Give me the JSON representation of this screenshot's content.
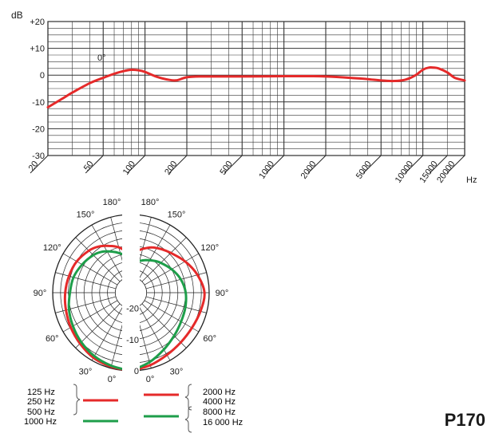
{
  "chart_data": [
    {
      "type": "line",
      "title": "",
      "ylabel": "dB",
      "xlabel": "Hz",
      "x_scale": "log",
      "xlim": [
        20,
        20000
      ],
      "ylim": [
        -30,
        20
      ],
      "y_ticks": [
        {
          "value": 20,
          "label": "+20"
        },
        {
          "value": 10,
          "label": "+10"
        },
        {
          "value": 0,
          "label": "0"
        },
        {
          "value": -10,
          "label": "-10"
        },
        {
          "value": -20,
          "label": "-20"
        },
        {
          "value": -30,
          "label": "-30"
        }
      ],
      "x_ticks": [
        {
          "value": 20,
          "label": "20"
        },
        {
          "value": 50,
          "label": "50"
        },
        {
          "value": 100,
          "label": "100"
        },
        {
          "value": 200,
          "label": "200"
        },
        {
          "value": 500,
          "label": "500"
        },
        {
          "value": 1000,
          "label": "1000"
        },
        {
          "value": 2000,
          "label": "2000"
        },
        {
          "value": 5000,
          "label": "5000"
        },
        {
          "value": 10000,
          "label": "10000"
        },
        {
          "value": 15000,
          "label": "15000"
        },
        {
          "value": 20000,
          "label": "20000"
        }
      ],
      "grid": true,
      "annotation": "0°",
      "color": "#e52a2a",
      "series": [
        {
          "x": [
            20,
            25,
            30,
            40,
            50,
            60,
            70,
            80,
            90,
            100,
            120,
            150,
            170,
            200,
            250,
            300,
            500,
            1000,
            1500,
            2000,
            3000,
            4000,
            5000,
            6000,
            7000,
            8000,
            9000,
            10000,
            11000,
            12000,
            13000,
            15000,
            17000,
            20000
          ],
          "y": [
            -12,
            -9,
            -6.5,
            -3,
            -1,
            0.5,
            1.5,
            2,
            1.8,
            1.2,
            -0.5,
            -1.8,
            -1.9,
            -0.8,
            -0.5,
            -0.5,
            -0.5,
            -0.4,
            -0.4,
            -0.5,
            -1,
            -1.5,
            -2,
            -2.2,
            -2,
            -1.2,
            0.2,
            2,
            2.8,
            2.8,
            2.5,
            1,
            -1,
            -2
          ]
        }
      ]
    },
    {
      "type": "polar",
      "title": "",
      "r_ticks": [
        {
          "value": 0,
          "label": "0"
        },
        {
          "value": -10,
          "label": "-10"
        },
        {
          "value": -20,
          "label": "-20"
        }
      ],
      "angle_labels": [
        "0°",
        "30°",
        "60°",
        "90°",
        "120°",
        "150°",
        "180°"
      ],
      "series": [
        {
          "name": "125 Hz 250 Hz 500 Hz",
          "side": "left",
          "color": "#e52a2a",
          "angle": [
            0,
            15,
            30,
            45,
            60,
            75,
            90,
            105,
            120,
            135,
            145,
            155,
            165,
            175,
            180
          ],
          "r": [
            0,
            -0.5,
            -1,
            -2,
            -2.8,
            -3.5,
            -4,
            -4.5,
            -5,
            -6,
            -7,
            -8.5,
            -10,
            -12,
            -13
          ]
        },
        {
          "name": "1000 Hz",
          "side": "left",
          "color": "#1e9e4a",
          "angle": [
            0,
            15,
            30,
            45,
            60,
            75,
            90,
            105,
            120,
            135,
            145,
            155,
            165,
            175,
            180
          ],
          "r": [
            0,
            -0.8,
            -1.6,
            -2.6,
            -3.6,
            -4.5,
            -5.5,
            -6,
            -7,
            -8,
            -9,
            -10.5,
            -12,
            -13.5,
            -14
          ]
        },
        {
          "name": "2000 Hz 4000 Hz",
          "side": "right",
          "color": "#e52a2a",
          "angle": [
            0,
            15,
            30,
            45,
            60,
            75,
            90,
            105,
            120,
            135,
            145,
            155,
            165,
            175,
            180
          ],
          "r": [
            0,
            -1,
            -2,
            -2.5,
            -2.5,
            -2,
            -1.5,
            -3,
            -5,
            -7,
            -8,
            -9,
            -10.5,
            -12,
            -13
          ]
        },
        {
          "name": "8000 Hz 16 000 Hz",
          "side": "right",
          "color": "#1e9e4a",
          "angle": [
            0,
            15,
            30,
            45,
            60,
            75,
            90,
            105,
            120,
            135,
            145,
            155,
            165,
            175,
            180
          ],
          "r": [
            0,
            -2,
            -4,
            -5.5,
            -6.5,
            -7,
            -7.5,
            -8.5,
            -10,
            -11.5,
            -12.5,
            -13.5,
            -14.5,
            -15.5,
            -16
          ]
        }
      ]
    }
  ],
  "legend": {
    "left": {
      "red_labels": [
        "125 Hz",
        "250 Hz",
        "500 Hz"
      ],
      "green_labels": [
        "1000 Hz"
      ]
    },
    "right": {
      "red_labels": [
        "2000 Hz",
        "4000 Hz"
      ],
      "green_labels": [
        "8000 Hz",
        "16 000 Hz"
      ]
    }
  },
  "model": "P170"
}
